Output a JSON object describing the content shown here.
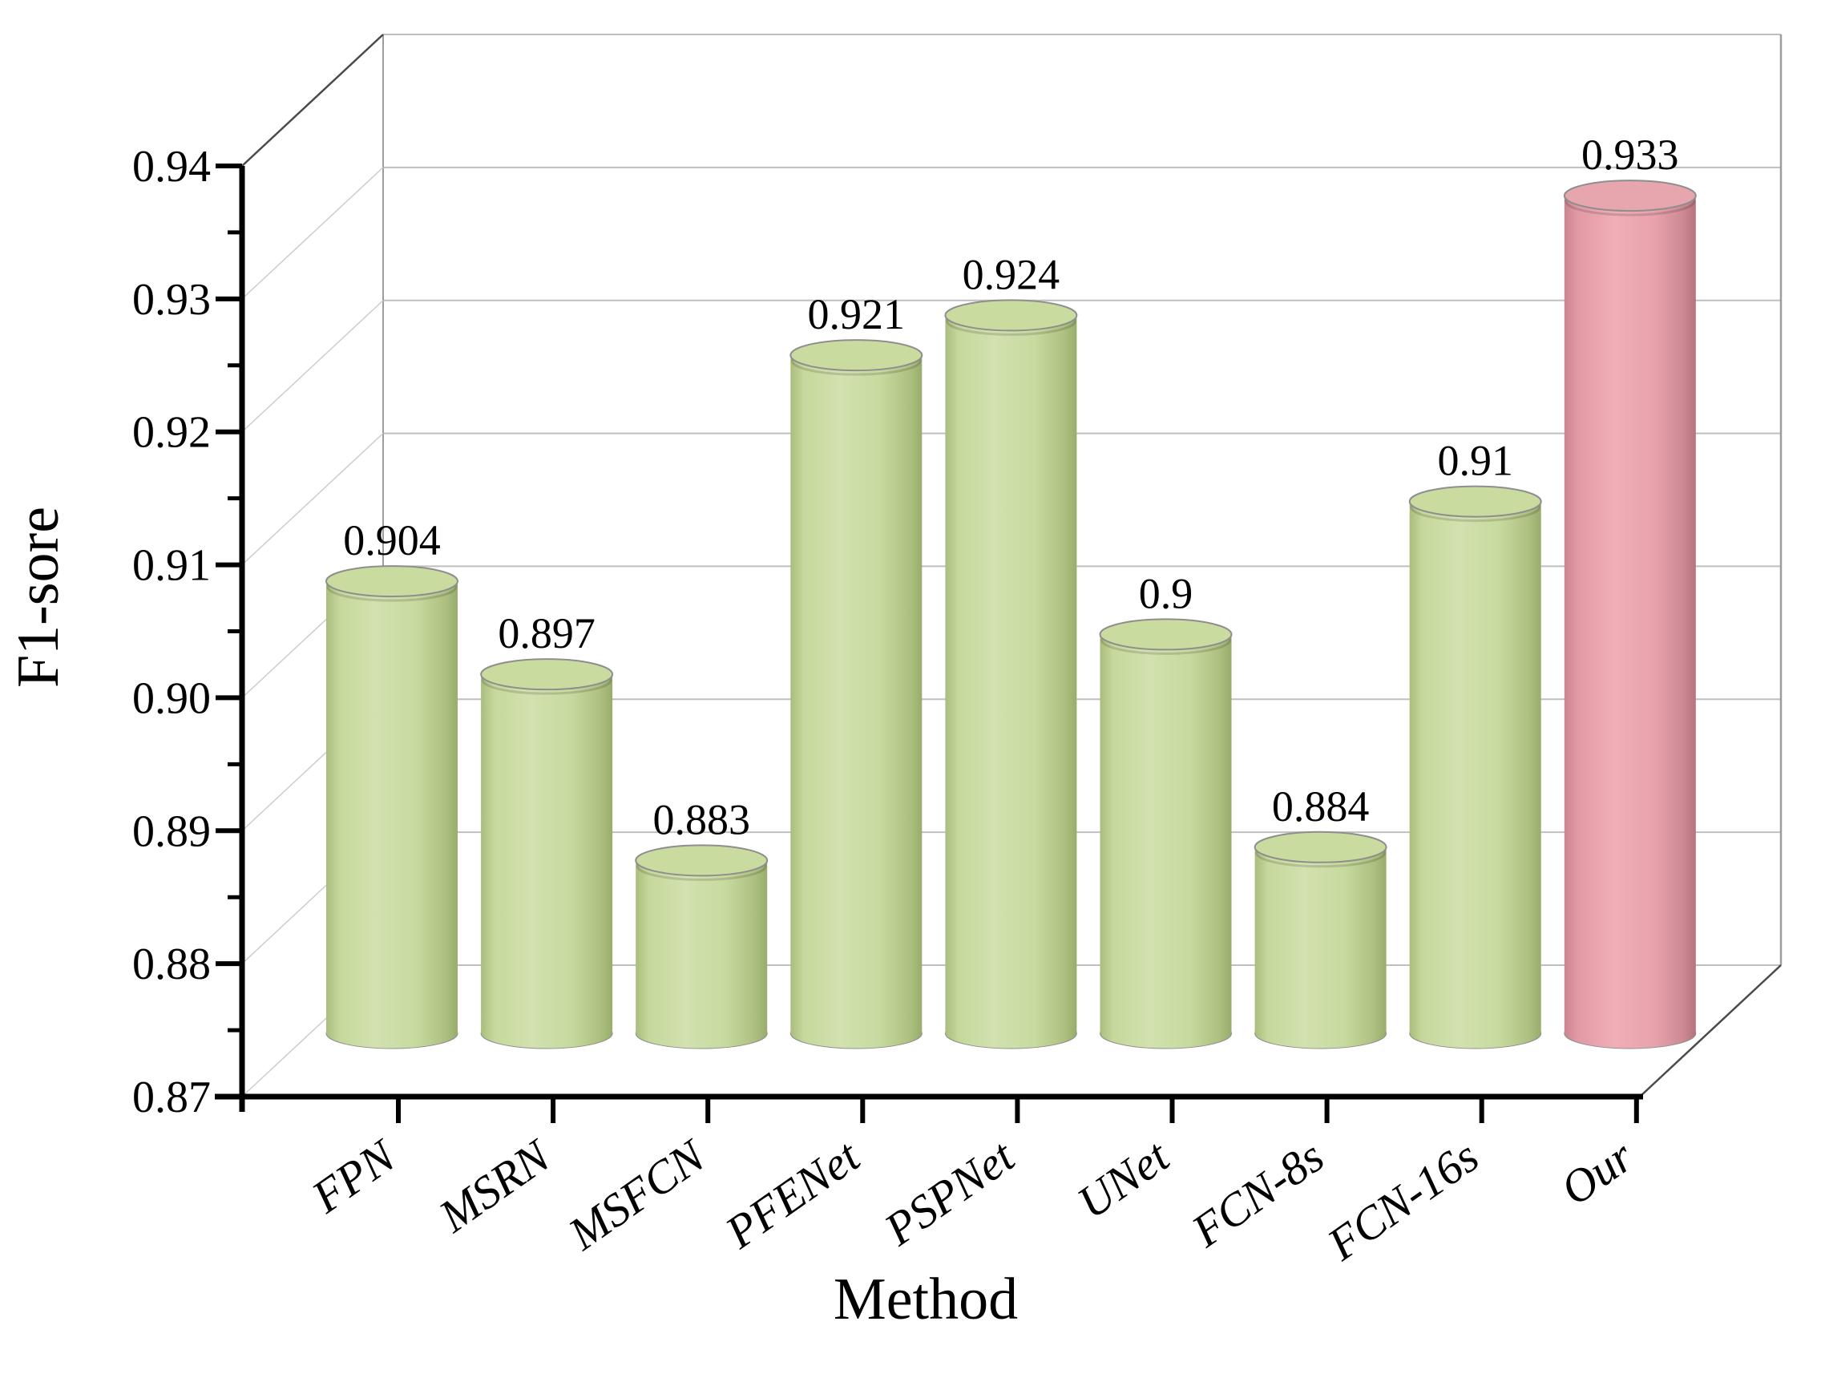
{
  "page": {
    "background": "#ffffff"
  },
  "chart_data": {
    "type": "bar",
    "subtype": "3d-cylinder",
    "title": "",
    "xlabel": "Method",
    "ylabel": "F1-sore",
    "categories": [
      "FPN",
      "MSRN",
      "MSFCN",
      "PFENet",
      "PSPNet",
      "UNet",
      "FCN-8s",
      "FCN-16s",
      "Our"
    ],
    "values": [
      0.904,
      0.897,
      0.883,
      0.921,
      0.924,
      0.9,
      0.884,
      0.91,
      0.933
    ],
    "value_labels": [
      "0.904",
      "0.897",
      "0.883",
      "0.921",
      "0.924",
      "0.9",
      "0.884",
      "0.91",
      "0.933"
    ],
    "ylim": [
      0.87,
      0.94
    ],
    "ytick_step": 0.01,
    "ytick_labels": [
      "0.94",
      "0.93",
      "0.92",
      "0.91",
      "0.90",
      "0.89",
      "0.88",
      "0.87"
    ],
    "minor_tick_step": 0.005,
    "grid": true,
    "legend": false,
    "highlight_index": 8,
    "colors": {
      "normal_bar": "#c6d89c",
      "highlight_bar": "#e8a3ad",
      "normal_body_gradient": [
        "#a9bd7d",
        "#c6d89c",
        "#d2e1af",
        "#c7da9f",
        "#aec181",
        "#98ad6c"
      ],
      "normal_top": "#cadb9f",
      "highlight_body_gradient": [
        "#c98490",
        "#e29aa5",
        "#f0aeb6",
        "#e8a3ad",
        "#cd8a94",
        "#b5737e"
      ],
      "highlight_top": "#e7a5ae",
      "cap_stroke": "#8e8e8e",
      "gridline": "#bfbfbf",
      "wall_gridline": "#cdcdcd",
      "wall_edge": "#9d9d9d",
      "box_edge": "#4a4a4a",
      "axis": "#000000",
      "text": "#000000"
    }
  }
}
